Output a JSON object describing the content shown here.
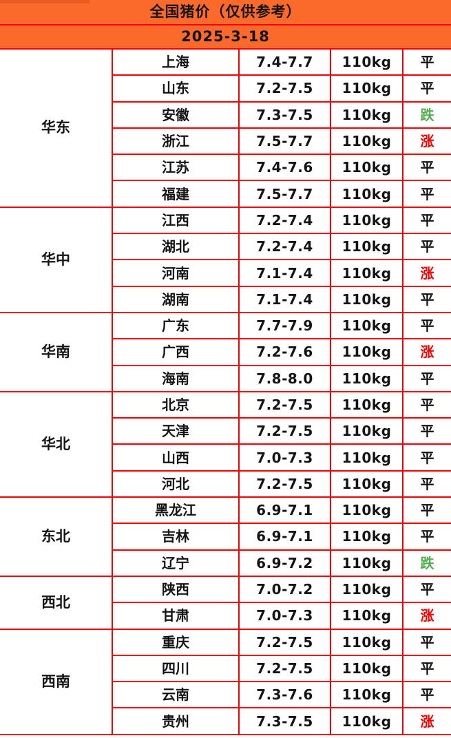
{
  "colors": {
    "header_bg": "#fb6a2b",
    "header_bg_dark": "#e95b20",
    "grid": "#f20000",
    "text": "#141414",
    "trend_up": "#f50000",
    "trend_down": "#53ae4f",
    "cell_bg": "#ffffff"
  },
  "chart_data": {
    "type": "table",
    "title": "全国猪价（仅供参考）",
    "date": "2025-3-18",
    "columns": [
      "region",
      "province",
      "price_range",
      "weight",
      "trend"
    ],
    "regions": [
      {
        "name": "华东",
        "rows": [
          {
            "province": "上海",
            "price": "7.4-7.7",
            "weight": "110kg",
            "status": "平",
            "trend": "flat"
          },
          {
            "province": "山东",
            "price": "7.2-7.5",
            "weight": "110kg",
            "status": "平",
            "trend": "flat"
          },
          {
            "province": "安徽",
            "price": "7.3-7.5",
            "weight": "110kg",
            "status": "跌",
            "trend": "down"
          },
          {
            "province": "浙江",
            "price": "7.5-7.7",
            "weight": "110kg",
            "status": "涨",
            "trend": "up"
          },
          {
            "province": "江苏",
            "price": "7.4-7.6",
            "weight": "110kg",
            "status": "平",
            "trend": "flat"
          },
          {
            "province": "福建",
            "price": "7.5-7.7",
            "weight": "110kg",
            "status": "平",
            "trend": "flat"
          }
        ]
      },
      {
        "name": "华中",
        "rows": [
          {
            "province": "江西",
            "price": "7.2-7.4",
            "weight": "110kg",
            "status": "平",
            "trend": "flat"
          },
          {
            "province": "湖北",
            "price": "7.2-7.4",
            "weight": "110kg",
            "status": "平",
            "trend": "flat"
          },
          {
            "province": "河南",
            "price": "7.1-7.4",
            "weight": "110kg",
            "status": "涨",
            "trend": "up"
          },
          {
            "province": "湖南",
            "price": "7.1-7.4",
            "weight": "110kg",
            "status": "平",
            "trend": "flat"
          }
        ]
      },
      {
        "name": "华南",
        "rows": [
          {
            "province": "广东",
            "price": "7.7-7.9",
            "weight": "110kg",
            "status": "平",
            "trend": "flat"
          },
          {
            "province": "广西",
            "price": "7.2-7.6",
            "weight": "110kg",
            "status": "涨",
            "trend": "up"
          },
          {
            "province": "海南",
            "price": "7.8-8.0",
            "weight": "110kg",
            "status": "平",
            "trend": "flat"
          }
        ]
      },
      {
        "name": "华北",
        "rows": [
          {
            "province": "北京",
            "price": "7.2-7.5",
            "weight": "110kg",
            "status": "平",
            "trend": "flat"
          },
          {
            "province": "天津",
            "price": "7.2-7.5",
            "weight": "110kg",
            "status": "平",
            "trend": "flat"
          },
          {
            "province": "山西",
            "price": "7.0-7.3",
            "weight": "110kg",
            "status": "平",
            "trend": "flat"
          },
          {
            "province": "河北",
            "price": "7.2-7.5",
            "weight": "110kg",
            "status": "平",
            "trend": "flat"
          }
        ]
      },
      {
        "name": "东北",
        "rows": [
          {
            "province": "黑龙江",
            "price": "6.9-7.1",
            "weight": "110kg",
            "status": "平",
            "trend": "flat"
          },
          {
            "province": "吉林",
            "price": "6.9-7.1",
            "weight": "110kg",
            "status": "平",
            "trend": "flat"
          },
          {
            "province": "辽宁",
            "price": "6.9-7.2",
            "weight": "110kg",
            "status": "跌",
            "trend": "down"
          }
        ]
      },
      {
        "name": "西北",
        "rows": [
          {
            "province": "陕西",
            "price": "7.0-7.2",
            "weight": "110kg",
            "status": "平",
            "trend": "flat"
          },
          {
            "province": "甘肃",
            "price": "7.0-7.3",
            "weight": "110kg",
            "status": "涨",
            "trend": "up"
          }
        ]
      },
      {
        "name": "西南",
        "rows": [
          {
            "province": "重庆",
            "price": "7.2-7.5",
            "weight": "110kg",
            "status": "平",
            "trend": "flat"
          },
          {
            "province": "四川",
            "price": "7.2-7.5",
            "weight": "110kg",
            "status": "平",
            "trend": "flat"
          },
          {
            "province": "云南",
            "price": "7.3-7.6",
            "weight": "110kg",
            "status": "平",
            "trend": "flat"
          },
          {
            "province": "贵州",
            "price": "7.3-7.5",
            "weight": "110kg",
            "status": "涨",
            "trend": "up"
          }
        ]
      }
    ]
  }
}
